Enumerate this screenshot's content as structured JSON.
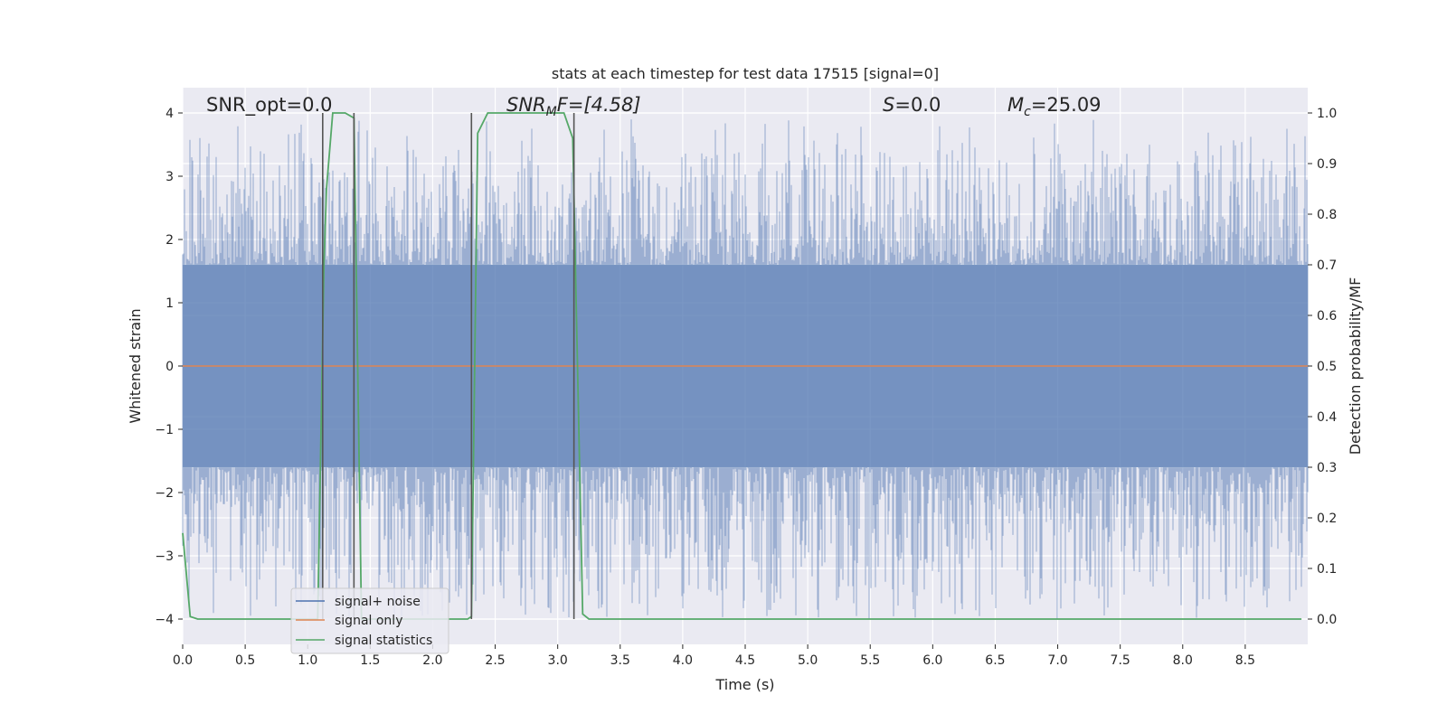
{
  "chart_data": {
    "type": "line",
    "title": "stats at each timestep for test data 17515 [signal=0]",
    "xlabel": "Time (s)",
    "ylabel": "Whitened strain",
    "y2label": "Detection probability/MF",
    "xlim": [
      0,
      9.0
    ],
    "ylim": [
      -4.4,
      4.4
    ],
    "y2lim": [
      -0.05,
      1.05
    ],
    "xticks": [
      0.0,
      0.5,
      1.0,
      1.5,
      2.0,
      2.5,
      3.0,
      3.5,
      4.0,
      4.5,
      5.0,
      5.5,
      6.0,
      6.5,
      7.0,
      7.5,
      8.0,
      8.5
    ],
    "yticks": [
      -4,
      -3,
      -2,
      -1,
      0,
      1,
      2,
      3,
      4
    ],
    "y2ticks": [
      0.0,
      0.1,
      0.2,
      0.3,
      0.4,
      0.5,
      0.6,
      0.7,
      0.8,
      0.9,
      1.0
    ],
    "grid": true,
    "legend_position": "lower-left",
    "annotations": {
      "snr_opt": "SNR_opt=0.0",
      "snr_mf_main": "SNR",
      "snr_mf_sub": "M",
      "snr_mf_rest": "F=[4.58]",
      "s_italic": "S",
      "s_rest": "=0.0",
      "mc_main": "M",
      "mc_sub": "c",
      "mc_rest": "=25.09"
    },
    "series": [
      {
        "name": "signal+ noise",
        "color": "#4c72b0",
        "kind": "noise",
        "x_range": [
          0,
          9.0
        ],
        "band_low": -1.6,
        "band_high": 1.6,
        "envelope": [
          -4.0,
          3.9
        ]
      },
      {
        "name": "signal only",
        "color": "#dd8452",
        "kind": "flat",
        "x": [
          0,
          9.0
        ],
        "y": [
          0,
          0
        ]
      },
      {
        "name": "signal statistics",
        "color": "#55a868",
        "kind": "secondary",
        "x": [
          0.0,
          0.06,
          0.12,
          1.05,
          1.08,
          1.13,
          1.15,
          1.2,
          1.3,
          1.37,
          1.43,
          1.45,
          2.28,
          2.31,
          2.36,
          2.44,
          2.5,
          3.05,
          3.12,
          3.2,
          3.25,
          8.95
        ],
        "y": [
          0.17,
          0.005,
          0.0,
          0.0,
          0.0,
          0.7,
          0.85,
          1.0,
          1.0,
          0.99,
          0.0,
          0.0,
          0.0,
          0.005,
          0.96,
          1.0,
          1.0,
          1.0,
          0.95,
          0.01,
          0.0,
          0.0
        ]
      }
    ],
    "vertical_markers": [
      1.12,
      1.37,
      2.31,
      3.13
    ]
  }
}
